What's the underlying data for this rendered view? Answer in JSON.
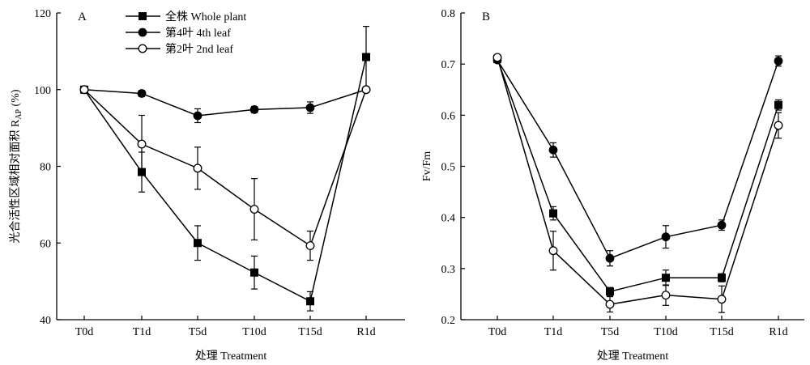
{
  "chart_data": [
    {
      "type": "line",
      "panel_label": "A",
      "ylabel_main": "光合活性区域相对面积 R",
      "ylabel_sub": "AP",
      "ylabel_unit": " (%)",
      "xlabel": "处理 Treatment",
      "categories": [
        "T0d",
        "T1d",
        "T5d",
        "T10d",
        "T15d",
        "R1d"
      ],
      "ylim": [
        40,
        120
      ],
      "yticks": [
        40,
        60,
        80,
        100,
        120
      ],
      "legend_position": "top-left",
      "series": [
        {
          "name": "全株 Whole plant",
          "marker": "square",
          "values": [
            100,
            78.5,
            60,
            52.3,
            44.8,
            108.5
          ],
          "errors": [
            0,
            5.2,
            4.5,
            4.3,
            2.5,
            8
          ]
        },
        {
          "name": "第4叶 4th leaf",
          "marker": "filled-circle",
          "values": [
            100,
            99,
            93.2,
            94.8,
            95.3,
            100
          ],
          "errors": [
            0,
            0.8,
            1.8,
            0.8,
            1.5,
            0
          ]
        },
        {
          "name": "第2叶 2nd leaf",
          "marker": "open-circle",
          "values": [
            100,
            85.8,
            79.5,
            68.8,
            59.3,
            100
          ],
          "errors": [
            0,
            7.5,
            5.5,
            8,
            3.8,
            0
          ]
        }
      ]
    },
    {
      "type": "line",
      "panel_label": "B",
      "ylabel": "Fv/Fm",
      "xlabel": "处理 Treatment",
      "categories": [
        "T0d",
        "T1d",
        "T5d",
        "T10d",
        "T15d",
        "R1d"
      ],
      "ylim": [
        0.2,
        0.8
      ],
      "yticks": [
        0.2,
        0.3,
        0.4,
        0.5,
        0.6,
        0.7,
        0.8
      ],
      "series": [
        {
          "name": "全株 Whole plant",
          "marker": "square",
          "values": [
            0.71,
            0.408,
            0.255,
            0.282,
            0.282,
            0.62
          ],
          "errors": [
            0.005,
            0.013,
            0.008,
            0.015,
            0.008,
            0.01
          ]
        },
        {
          "name": "第4叶 4th leaf",
          "marker": "filled-circle",
          "values": [
            0.708,
            0.532,
            0.32,
            0.362,
            0.385,
            0.706
          ],
          "errors": [
            0.005,
            0.014,
            0.015,
            0.022,
            0.01,
            0.01
          ]
        },
        {
          "name": "第2叶 2nd leaf",
          "marker": "open-circle",
          "values": [
            0.713,
            0.335,
            0.23,
            0.248,
            0.24,
            0.58
          ],
          "errors": [
            0.005,
            0.038,
            0.015,
            0.02,
            0.026,
            0.025
          ]
        }
      ]
    }
  ]
}
